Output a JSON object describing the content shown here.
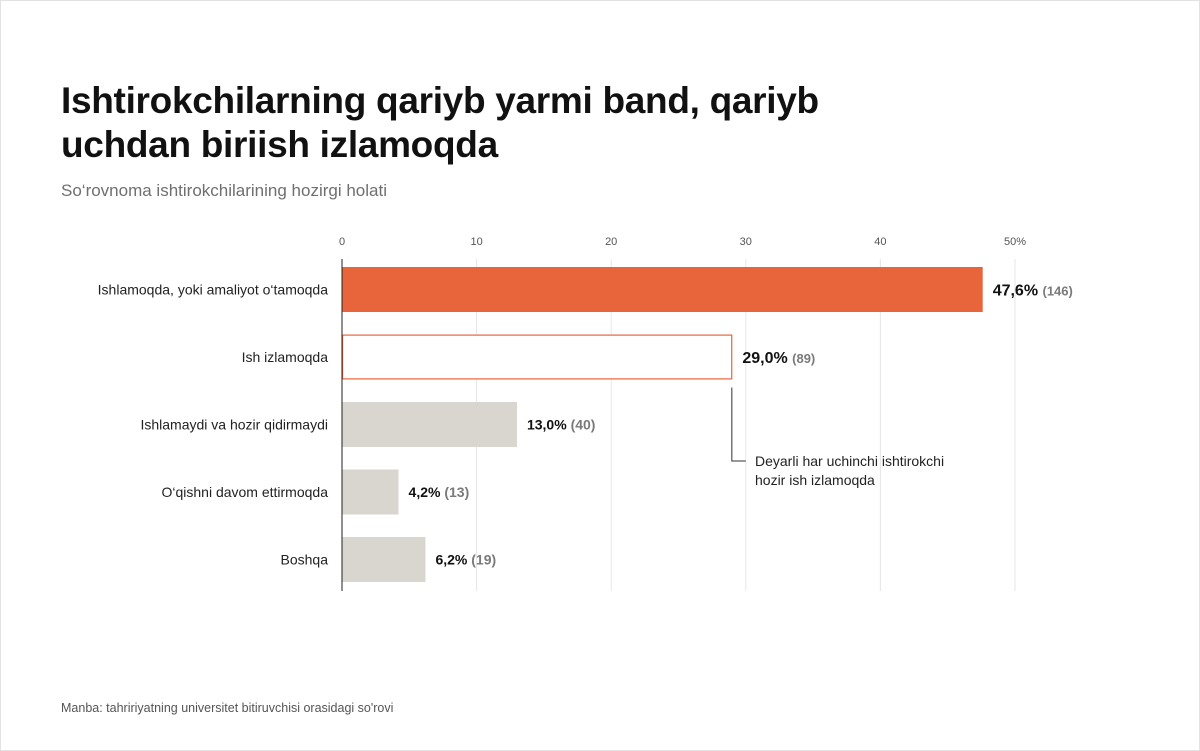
{
  "title_lines": [
    "Ishtirokchilarning qariyb yarmi band, qariyb",
    "uchdan biriish izlamoqda"
  ],
  "subtitle": "So‘rovnoma ishtirokchilarining hozirgi holati",
  "source": "Manba: tahririyatning universitet bitiruvchisi orasidagi so'rovi",
  "colors": {
    "accent": "#E8643A",
    "neutral": "#D9D6CF",
    "outline_fill": "#FFFFFF",
    "grid": "#E6E6E6",
    "axis": "#222222"
  },
  "chart_data": {
    "type": "bar",
    "orientation": "horizontal",
    "xlim": [
      0,
      50
    ],
    "ticks": [
      0,
      10,
      20,
      30,
      40,
      50
    ],
    "tick_labels": [
      "0",
      "10",
      "20",
      "30",
      "40",
      "50%"
    ],
    "grid": true,
    "categories": [
      "Ishlamoqda,  yoki amaliyot o‘tamoqda",
      "Ish izlamoqda",
      "Ishlamaydi va hozir qidirmaydi",
      "O‘qishni davom ettirmoqda",
      "Boshqa"
    ],
    "values": [
      47.6,
      29.0,
      13.0,
      4.2,
      6.2
    ],
    "value_labels": [
      "47,6%",
      "29,0%",
      "13,0%",
      "4,2%",
      "6,2%"
    ],
    "counts": [
      "(146)",
      "(89)",
      "(40)",
      "(13)",
      "(19)"
    ],
    "styles": [
      "accent",
      "outline",
      "neutral",
      "neutral",
      "neutral"
    ],
    "annotation": {
      "category_index": 1,
      "lines": [
        "Deyarli har uchinchi ishtirokchi",
        "hozir ish izlamoqda"
      ]
    }
  }
}
